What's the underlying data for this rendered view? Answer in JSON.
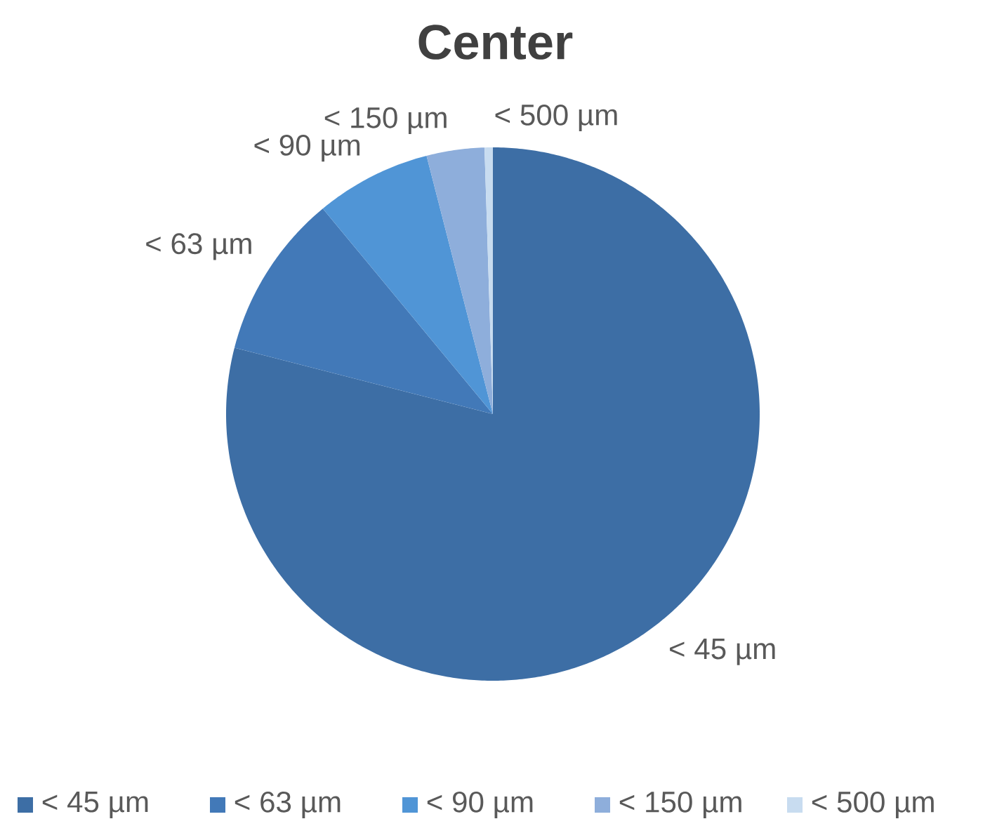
{
  "chart_data": {
    "type": "pie",
    "title": "Center",
    "categories": [
      "< 45 µm",
      "< 63 µm",
      "< 90 µm",
      "< 150 µm",
      "< 500 µm"
    ],
    "values": [
      79,
      10,
      7,
      3.5,
      0.5
    ],
    "colors": [
      "#3d6ea5",
      "#4279b8",
      "#5095d6",
      "#8eaedb",
      "#c8dcf0"
    ],
    "legend": "bottom"
  }
}
